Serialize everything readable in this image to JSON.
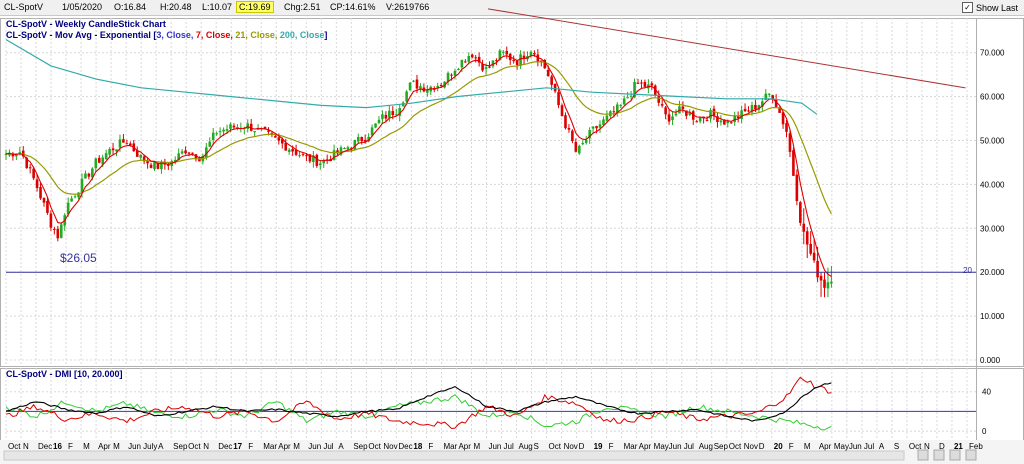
{
  "topbar": {
    "symbol": "CL-SpotV",
    "date": "1/05/2020",
    "open": "O:16.84",
    "high": "H:20.48",
    "low": "L:10.07",
    "close": "C:19.69",
    "change": "Chg:2.51",
    "change_pct": "CP:14.61%",
    "volume": "V:2619766",
    "show_last_label": "Show Last",
    "show_last_checked": "✓"
  },
  "main_panel": {
    "title": "CL-SpotV - Weekly CandleStick Chart",
    "overlay_prefix": "CL-SpotV - Mov Avg - Exponential [",
    "overlay_params": [
      {
        "text": "3, Close, ",
        "color": "#3333cc"
      },
      {
        "text": "7, Close, ",
        "color": "#dd0000"
      },
      {
        "text": "21, Close, ",
        "color": "#999900"
      },
      {
        "text": "200, Close",
        "color": "#33aaaa"
      }
    ],
    "overlay_suffix": "]",
    "annotation_low": "$26.05",
    "line_label": "20"
  },
  "dmi_panel": {
    "title": "CL-SpotV - DMI [10, 20.000]"
  },
  "colors": {
    "up_candle": "#22aa22",
    "down_candle": "#dd0000",
    "ema3": "#dd0000",
    "ema21": "#999900",
    "ema200": "#33aaaa",
    "trendline": "#aa3333",
    "hline": "#333399",
    "dmi_plus": "#33cc33",
    "dmi_minus": "#dd0000",
    "adx": "#000000",
    "dmi_level": "#3333cc"
  },
  "chart_data": {
    "type": "candlestick",
    "ylim": [
      0,
      77
    ],
    "y_ticks": [
      {
        "v": 0,
        "label": "0.000"
      },
      {
        "v": 10,
        "label": "10.000"
      },
      {
        "v": 20,
        "label": "20.000"
      },
      {
        "v": 30,
        "label": "30.000"
      },
      {
        "v": 40,
        "label": "40.000"
      },
      {
        "v": 50,
        "label": "50.000"
      },
      {
        "v": 60,
        "label": "60.000"
      },
      {
        "v": 70,
        "label": "70.000"
      }
    ],
    "x_labels": [
      {
        "label": "Oct",
        "month": 0,
        "bold": false
      },
      {
        "label": "N",
        "month": 1,
        "bold": false
      },
      {
        "label": "Dec",
        "month": 2,
        "bold": false
      },
      {
        "label": "16",
        "month": 3,
        "bold": true
      },
      {
        "label": "F",
        "month": 4,
        "bold": false
      },
      {
        "label": "M",
        "month": 5,
        "bold": false
      },
      {
        "label": "Apr",
        "month": 6,
        "bold": false
      },
      {
        "label": "M",
        "month": 7,
        "bold": false
      },
      {
        "label": "Jun",
        "month": 8,
        "bold": false
      },
      {
        "label": "July",
        "month": 9,
        "bold": false
      },
      {
        "label": "A",
        "month": 10,
        "bold": false
      },
      {
        "label": "Sep",
        "month": 11,
        "bold": false
      },
      {
        "label": "Oct",
        "month": 12,
        "bold": false
      },
      {
        "label": "N",
        "month": 13,
        "bold": false
      },
      {
        "label": "Dec",
        "month": 14,
        "bold": false
      },
      {
        "label": "17",
        "month": 15,
        "bold": true
      },
      {
        "label": "F",
        "month": 16,
        "bold": false
      },
      {
        "label": "Mar",
        "month": 17,
        "bold": false
      },
      {
        "label": "Apr",
        "month": 18,
        "bold": false
      },
      {
        "label": "M",
        "month": 19,
        "bold": false
      },
      {
        "label": "Jun",
        "month": 20,
        "bold": false
      },
      {
        "label": "Jul",
        "month": 21,
        "bold": false
      },
      {
        "label": "A",
        "month": 22,
        "bold": false
      },
      {
        "label": "Sep",
        "month": 23,
        "bold": false
      },
      {
        "label": "Oct",
        "month": 24,
        "bold": false
      },
      {
        "label": "Nov",
        "month": 25,
        "bold": false
      },
      {
        "label": "Dec",
        "month": 26,
        "bold": false
      },
      {
        "label": "18",
        "month": 27,
        "bold": true
      },
      {
        "label": "F",
        "month": 28,
        "bold": false
      },
      {
        "label": "Mar",
        "month": 29,
        "bold": false
      },
      {
        "label": "Apr",
        "month": 30,
        "bold": false
      },
      {
        "label": "M",
        "month": 31,
        "bold": false
      },
      {
        "label": "Jun",
        "month": 32,
        "bold": false
      },
      {
        "label": "Jul",
        "month": 33,
        "bold": false
      },
      {
        "label": "Aug",
        "month": 34,
        "bold": false
      },
      {
        "label": "S",
        "month": 35,
        "bold": false
      },
      {
        "label": "Oct",
        "month": 36,
        "bold": false
      },
      {
        "label": "Nov",
        "month": 37,
        "bold": false
      },
      {
        "label": "D",
        "month": 38,
        "bold": false
      },
      {
        "label": "19",
        "month": 39,
        "bold": true
      },
      {
        "label": "F",
        "month": 40,
        "bold": false
      },
      {
        "label": "Mar",
        "month": 41,
        "bold": false
      },
      {
        "label": "Apr",
        "month": 42,
        "bold": false
      },
      {
        "label": "May",
        "month": 43,
        "bold": false
      },
      {
        "label": "Jun",
        "month": 44,
        "bold": false
      },
      {
        "label": "Jul",
        "month": 45,
        "bold": false
      },
      {
        "label": "Aug",
        "month": 46,
        "bold": false
      },
      {
        "label": "Sep",
        "month": 47,
        "bold": false
      },
      {
        "label": "Oct",
        "month": 48,
        "bold": false
      },
      {
        "label": "Nov",
        "month": 49,
        "bold": false
      },
      {
        "label": "D",
        "month": 50,
        "bold": false
      },
      {
        "label": "20",
        "month": 51,
        "bold": true
      },
      {
        "label": "F",
        "month": 52,
        "bold": false
      },
      {
        "label": "M",
        "month": 53,
        "bold": false
      },
      {
        "label": "Apr",
        "month": 54,
        "bold": false
      },
      {
        "label": "May",
        "month": 55,
        "bold": false
      },
      {
        "label": "Jun",
        "month": 56,
        "bold": false
      },
      {
        "label": "Jul",
        "month": 57,
        "bold": false
      },
      {
        "label": "A",
        "month": 58,
        "bold": false
      },
      {
        "label": "S",
        "month": 59,
        "bold": false
      },
      {
        "label": "Oct",
        "month": 60,
        "bold": false
      },
      {
        "label": "N",
        "month": 61,
        "bold": false
      },
      {
        "label": "D",
        "month": 62,
        "bold": false
      },
      {
        "label": "21",
        "month": 63,
        "bold": true
      },
      {
        "label": "Feb",
        "month": 64,
        "bold": false
      }
    ],
    "price_keypoints": [
      [
        0,
        47
      ],
      [
        1,
        47.5
      ],
      [
        2,
        40
      ],
      [
        3,
        31
      ],
      [
        3.5,
        28
      ],
      [
        4,
        35
      ],
      [
        5,
        40
      ],
      [
        6,
        45
      ],
      [
        7,
        48
      ],
      [
        8,
        50
      ],
      [
        9,
        46
      ],
      [
        10,
        44
      ],
      [
        11,
        45
      ],
      [
        12,
        48
      ],
      [
        13,
        46
      ],
      [
        14,
        52
      ],
      [
        15,
        53
      ],
      [
        16,
        53.5
      ],
      [
        17,
        52
      ],
      [
        18,
        50
      ],
      [
        19,
        48
      ],
      [
        20,
        46
      ],
      [
        21,
        45
      ],
      [
        22,
        47
      ],
      [
        23,
        49
      ],
      [
        24,
        51
      ],
      [
        25,
        55
      ],
      [
        26,
        57
      ],
      [
        27,
        63
      ],
      [
        28,
        62
      ],
      [
        29,
        63
      ],
      [
        30,
        67
      ],
      [
        31,
        70
      ],
      [
        32,
        66
      ],
      [
        33,
        70
      ],
      [
        34,
        68
      ],
      [
        35,
        71
      ],
      [
        36,
        66
      ],
      [
        37,
        56
      ],
      [
        38,
        47
      ],
      [
        39,
        52
      ],
      [
        40,
        55
      ],
      [
        41,
        58
      ],
      [
        42,
        63
      ],
      [
        43,
        62
      ],
      [
        44,
        55
      ],
      [
        45,
        57
      ],
      [
        46,
        55
      ],
      [
        47,
        56
      ],
      [
        48,
        54
      ],
      [
        49,
        56
      ],
      [
        50,
        58
      ],
      [
        51,
        61
      ],
      [
        52,
        52
      ],
      [
        53,
        30
      ],
      [
        54,
        20
      ],
      [
        54.5,
        17
      ],
      [
        55,
        19
      ]
    ],
    "ema200_keypoints": [
      [
        0,
        73
      ],
      [
        3,
        67
      ],
      [
        6,
        64
      ],
      [
        9,
        62
      ],
      [
        12,
        61
      ],
      [
        15,
        60
      ],
      [
        18,
        59
      ],
      [
        21,
        58
      ],
      [
        24,
        57.5
      ],
      [
        27,
        58.5
      ],
      [
        30,
        60
      ],
      [
        33,
        61
      ],
      [
        36,
        62
      ],
      [
        39,
        61
      ],
      [
        42,
        60.5
      ],
      [
        45,
        60
      ],
      [
        48,
        59.5
      ],
      [
        51,
        59.5
      ],
      [
        53,
        58.5
      ],
      [
        54,
        56
      ]
    ],
    "dmi_ylim": [
      -5,
      60
    ],
    "dmi_ticks": [
      {
        "v": 0,
        "label": "0"
      },
      {
        "v": 40,
        "label": "40"
      }
    ],
    "dmi_level": 20,
    "dmi_plus_keypoints": [
      [
        0,
        25
      ],
      [
        2,
        15
      ],
      [
        4,
        30
      ],
      [
        6,
        20
      ],
      [
        8,
        28
      ],
      [
        10,
        18
      ],
      [
        12,
        15
      ],
      [
        14,
        22
      ],
      [
        16,
        15
      ],
      [
        18,
        30
      ],
      [
        20,
        10
      ],
      [
        22,
        20
      ],
      [
        24,
        15
      ],
      [
        26,
        25
      ],
      [
        28,
        30
      ],
      [
        30,
        35
      ],
      [
        32,
        15
      ],
      [
        34,
        20
      ],
      [
        36,
        5
      ],
      [
        38,
        10
      ],
      [
        40,
        25
      ],
      [
        42,
        20
      ],
      [
        44,
        15
      ],
      [
        46,
        25
      ],
      [
        48,
        20
      ],
      [
        50,
        15
      ],
      [
        52,
        10
      ],
      [
        54,
        5
      ],
      [
        55,
        3
      ]
    ],
    "dmi_minus_keypoints": [
      [
        0,
        15
      ],
      [
        2,
        25
      ],
      [
        4,
        12
      ],
      [
        6,
        18
      ],
      [
        8,
        10
      ],
      [
        10,
        20
      ],
      [
        12,
        25
      ],
      [
        14,
        15
      ],
      [
        16,
        20
      ],
      [
        18,
        10
      ],
      [
        20,
        30
      ],
      [
        22,
        12
      ],
      [
        24,
        18
      ],
      [
        26,
        10
      ],
      [
        28,
        8
      ],
      [
        30,
        5
      ],
      [
        32,
        25
      ],
      [
        34,
        15
      ],
      [
        36,
        35
      ],
      [
        38,
        28
      ],
      [
        40,
        10
      ],
      [
        42,
        12
      ],
      [
        44,
        20
      ],
      [
        46,
        12
      ],
      [
        48,
        15
      ],
      [
        50,
        18
      ],
      [
        52,
        35
      ],
      [
        53,
        55
      ],
      [
        54,
        45
      ],
      [
        55,
        40
      ]
    ],
    "adx_keypoints": [
      [
        0,
        20
      ],
      [
        2,
        30
      ],
      [
        4,
        22
      ],
      [
        6,
        18
      ],
      [
        8,
        25
      ],
      [
        10,
        15
      ],
      [
        12,
        20
      ],
      [
        14,
        25
      ],
      [
        16,
        20
      ],
      [
        18,
        22
      ],
      [
        20,
        18
      ],
      [
        22,
        15
      ],
      [
        24,
        20
      ],
      [
        26,
        22
      ],
      [
        28,
        35
      ],
      [
        30,
        45
      ],
      [
        32,
        25
      ],
      [
        34,
        20
      ],
      [
        36,
        30
      ],
      [
        38,
        35
      ],
      [
        40,
        25
      ],
      [
        42,
        18
      ],
      [
        44,
        20
      ],
      [
        46,
        22
      ],
      [
        48,
        15
      ],
      [
        50,
        10
      ],
      [
        52,
        20
      ],
      [
        53,
        35
      ],
      [
        54,
        45
      ],
      [
        55,
        50
      ]
    ]
  }
}
